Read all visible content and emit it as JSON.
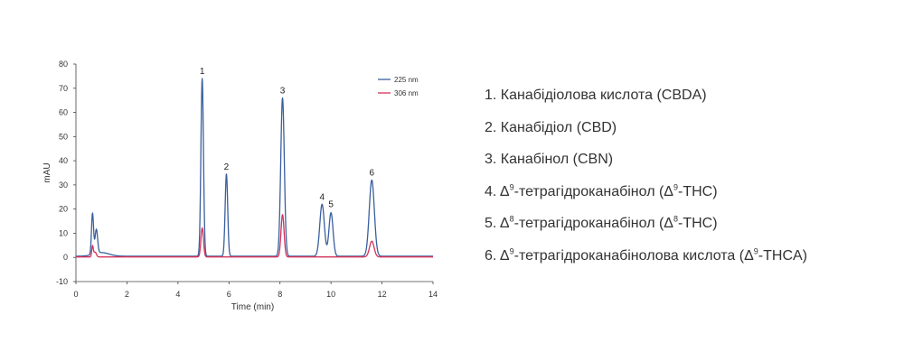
{
  "chart_data": {
    "type": "line",
    "xlabel": "Time (min)",
    "ylabel": "mAU",
    "xlim": [
      0,
      14
    ],
    "ylim": [
      -10,
      80
    ],
    "x_ticks": [
      0,
      2,
      4,
      6,
      8,
      10,
      12,
      14
    ],
    "y_ticks": [
      -10,
      0,
      10,
      20,
      30,
      40,
      50,
      60,
      70,
      80
    ],
    "grid": false,
    "legend_position": "top-right",
    "series": [
      {
        "name": "225 nm",
        "color": "#3a5f9e",
        "baseline": 0.5,
        "peaks": [
          {
            "x": 0.65,
            "height": 17,
            "width": 0.04
          },
          {
            "x": 0.8,
            "height": 10,
            "width": 0.05
          },
          {
            "x": 1.0,
            "height": 1.5,
            "width": 0.3
          },
          {
            "x": 4.95,
            "height": 73.5,
            "width": 0.05
          },
          {
            "x": 5.9,
            "height": 34,
            "width": 0.05
          },
          {
            "x": 8.1,
            "height": 65.5,
            "width": 0.07
          },
          {
            "x": 9.65,
            "height": 21.5,
            "width": 0.09
          },
          {
            "x": 10.0,
            "height": 18,
            "width": 0.08
          },
          {
            "x": 11.6,
            "height": 31.5,
            "width": 0.1
          }
        ]
      },
      {
        "name": "306 nm",
        "color": "#d6335a",
        "baseline": 0.2,
        "peaks": [
          {
            "x": 0.65,
            "height": 4.5,
            "width": 0.03
          },
          {
            "x": 0.75,
            "height": 2,
            "width": 0.05
          },
          {
            "x": 4.95,
            "height": 12,
            "width": 0.05
          },
          {
            "x": 8.1,
            "height": 17.5,
            "width": 0.06
          },
          {
            "x": 11.6,
            "height": 6.5,
            "width": 0.09
          }
        ]
      }
    ],
    "peak_labels": [
      {
        "text": "1",
        "x": 4.95,
        "y": 74
      },
      {
        "text": "2",
        "x": 5.9,
        "y": 34.5
      },
      {
        "text": "3",
        "x": 8.1,
        "y": 66
      },
      {
        "text": "4",
        "x": 9.65,
        "y": 22
      },
      {
        "text": "5",
        "x": 10.0,
        "y": 19
      },
      {
        "text": "6",
        "x": 11.6,
        "y": 32
      }
    ]
  },
  "peak_list": [
    {
      "number": "1.",
      "name": "Канабідіолова кислота (CBDA)"
    },
    {
      "number": "2.",
      "name": "Канабідіол (CBD)"
    },
    {
      "number": "3.",
      "name": "Канабінол (CBN)"
    },
    {
      "number": "4.",
      "pre": "Δ",
      "sup": "9",
      "name": "-тетрагідроканабінол (",
      "name_pre2": "Δ",
      "sup2": "9",
      "post": "-THC)"
    },
    {
      "number": "5.",
      "pre": "Δ",
      "sup": "8",
      "name": "-тетрагідроканабінол (",
      "name_pre2": "Δ",
      "sup2": "8",
      "post": "-THC)"
    },
    {
      "number": "6.",
      "pre": "Δ",
      "sup": "9",
      "name": "-тетрагідроканабінолова кислота (",
      "name_pre2": "Δ",
      "sup2": "9",
      "post": "-THCA)"
    }
  ]
}
